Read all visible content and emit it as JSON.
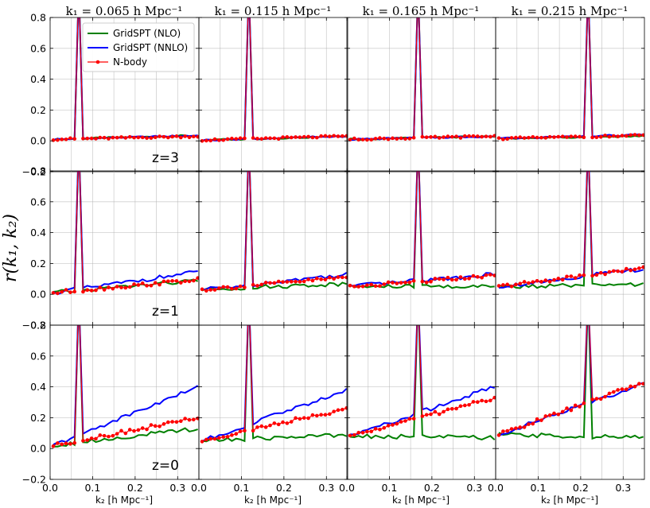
{
  "chart_data": {
    "type": "line",
    "ylabel": "r(k₁, k₂)",
    "column_titles": [
      "k₁ = 0.065 h Mpc⁻¹",
      "k₁ = 0.115 h Mpc⁻¹",
      "k₁ = 0.165 h Mpc⁻¹",
      "k₁ = 0.215 h Mpc⁻¹"
    ],
    "k1_values": [
      0.065,
      0.115,
      0.165,
      0.215
    ],
    "row_labels": [
      "z=3",
      "z=1",
      "z=0"
    ],
    "xlabel": "k₂ [h Mpc⁻¹]",
    "xlim": [
      0.0,
      0.35
    ],
    "ylim": [
      -0.2,
      0.8
    ],
    "xticks": [
      "0.0",
      "0.1",
      "0.2",
      "0.3"
    ],
    "yticks": [
      "−0.2",
      "0.0",
      "0.2",
      "0.4",
      "0.6",
      "0.8"
    ],
    "grid": true,
    "legend": {
      "placement": "top-left of first panel",
      "entries": [
        {
          "label": "GridSPT (NLO)",
          "color": "#008000"
        },
        {
          "label": "GridSPT (NNLO)",
          "color": "#0000ff"
        },
        {
          "label": "N-body",
          "color": "#ff0000"
        }
      ]
    },
    "k2": [
      0.0075,
      0.0175,
      0.0275,
      0.0375,
      0.0475,
      0.0575,
      0.0675,
      0.0775,
      0.0875,
      0.0975,
      0.1075,
      0.1175,
      0.1275,
      0.1375,
      0.1475,
      0.1575,
      0.1675,
      0.1775,
      0.1875,
      0.1975,
      0.2075,
      0.2175,
      0.2275,
      0.2375,
      0.2475,
      0.2575,
      0.2675,
      0.2775,
      0.2875,
      0.2975,
      0.3075,
      0.3175,
      0.3275,
      0.3375,
      0.3475
    ],
    "peak_value": 1.0,
    "approx_trends": [
      [
        {
          "nlo": [
            0.01,
            0.035
          ],
          "nnlo": [
            0.01,
            0.035
          ],
          "nbody": [
            0.01,
            0.03
          ]
        },
        {
          "nlo": [
            0.005,
            0.03
          ],
          "nnlo": [
            0.005,
            0.03
          ],
          "nbody": [
            0.005,
            0.03
          ]
        },
        {
          "nlo": [
            0.01,
            0.03
          ],
          "nnlo": [
            0.01,
            0.03
          ],
          "nbody": [
            0.01,
            0.03
          ]
        },
        {
          "nlo": [
            0.015,
            0.03
          ],
          "nnlo": [
            0.015,
            0.04
          ],
          "nbody": [
            0.015,
            0.035
          ]
        }
      ],
      [
        {
          "nlo": [
            0.01,
            0.09
          ],
          "nnlo": [
            0.01,
            0.145
          ],
          "nbody": [
            0.01,
            0.095
          ]
        },
        {
          "nlo": [
            0.03,
            0.07
          ],
          "nnlo": [
            0.03,
            0.13
          ],
          "nbody": [
            0.03,
            0.11
          ]
        },
        {
          "nlo": [
            0.05,
            0.05
          ],
          "nnlo": [
            0.05,
            0.13
          ],
          "nbody": [
            0.05,
            0.12
          ]
        },
        {
          "nlo": [
            0.05,
            0.06
          ],
          "nnlo": [
            0.05,
            0.165
          ],
          "nbody": [
            0.05,
            0.17
          ]
        }
      ],
      [
        {
          "nlo": [
            0.02,
            0.13
          ],
          "nnlo": [
            0.02,
            0.4
          ],
          "nbody": [
            0.02,
            0.2
          ]
        },
        {
          "nlo": [
            0.05,
            0.09
          ],
          "nnlo": [
            0.05,
            0.38
          ],
          "nbody": [
            0.05,
            0.26
          ]
        },
        {
          "nlo": [
            0.08,
            0.07
          ],
          "nnlo": [
            0.08,
            0.4
          ],
          "nbody": [
            0.08,
            0.33
          ]
        },
        {
          "nlo": [
            0.09,
            0.07
          ],
          "nnlo": [
            0.09,
            0.42
          ],
          "nbody": [
            0.09,
            0.43
          ]
        }
      ]
    ]
  }
}
